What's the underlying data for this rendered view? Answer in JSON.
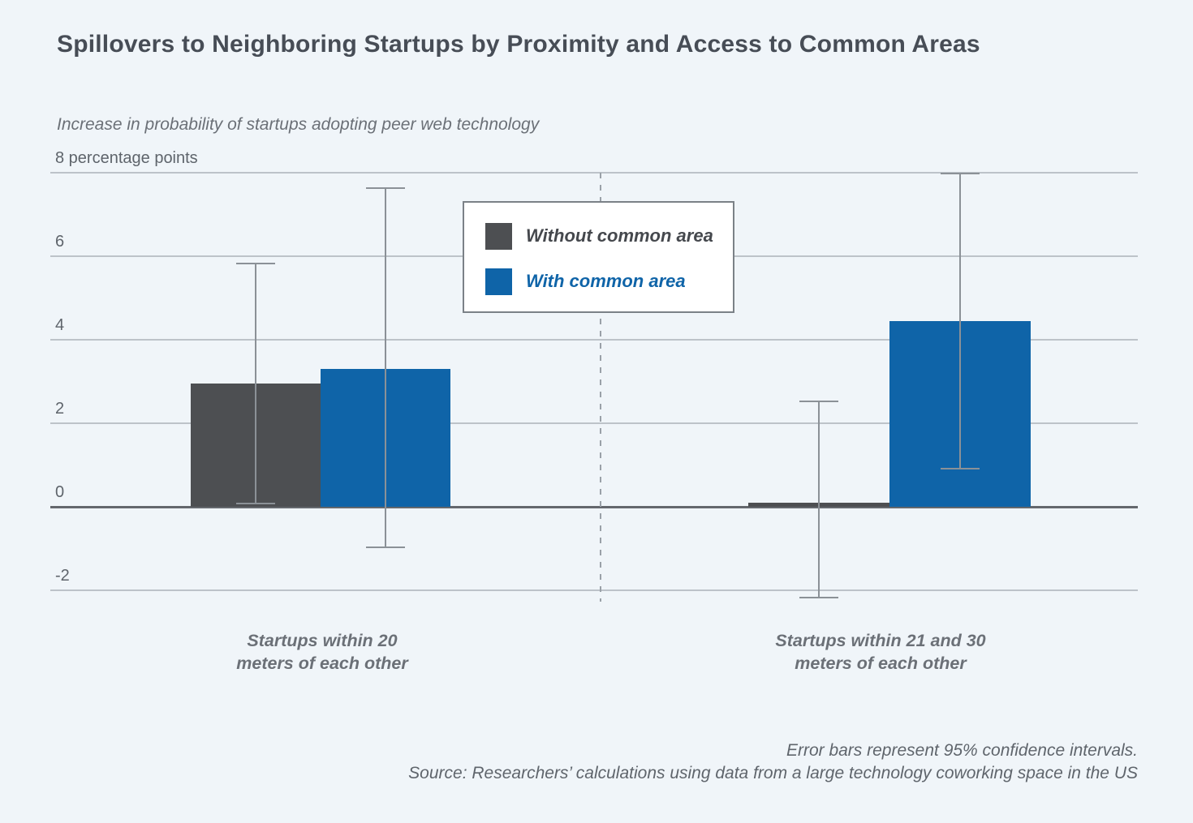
{
  "page": {
    "background_color": "#f0f5f9"
  },
  "chart_data": {
    "type": "bar",
    "title": "Spillovers to Neighboring Startups by Proximity and Access to Common Areas",
    "subtitle": "Increase in probability of startups adopting peer web technology",
    "xlabel": "",
    "ylabel": "percentage points",
    "ylim": [
      -3.1,
      8.3
    ],
    "grid": true,
    "yticks": [
      {
        "value": 8,
        "label": "8 percentage points"
      },
      {
        "value": 6,
        "label": "6"
      },
      {
        "value": 4,
        "label": "4"
      },
      {
        "value": 2,
        "label": "2"
      },
      {
        "value": 0,
        "label": "0"
      },
      {
        "value": -2,
        "label": "-2"
      }
    ],
    "categories": [
      "Startups within 20 meters of each other",
      "Startups within 21 and 30 meters of each other"
    ],
    "categories_lines": [
      [
        "Startups within 20",
        "meters of each other"
      ],
      [
        "Startups within 21 and 30",
        "meters of each other"
      ]
    ],
    "series": [
      {
        "name": "Without common area",
        "key": "without-common-area",
        "color": "#4d4f52",
        "values": [
          2.95,
          0.1
        ],
        "ci_low": [
          0.05,
          -2.2
        ],
        "ci_high": [
          5.85,
          2.55
        ]
      },
      {
        "name": "With common area",
        "key": "with-common-area",
        "color": "#0f64a8",
        "values": [
          3.3,
          4.45
        ],
        "ci_low": [
          -1.0,
          0.9
        ],
        "ci_high": [
          7.65,
          8.0
        ]
      }
    ],
    "legend": {
      "position": "top-center",
      "entries": [
        {
          "label": "Without common area",
          "swatch_color": "#4d4f52",
          "text_color": "#45484d"
        },
        {
          "label": "With common area",
          "swatch_color": "#0f64a8",
          "text_color": "#0f64a8"
        }
      ]
    },
    "error_bar_color": "#8b9197",
    "annotations": [
      "Error bars represent 95% confidence intervals.",
      "Source: Researchers’ calculations using data from a large technology coworking space in the US"
    ]
  }
}
